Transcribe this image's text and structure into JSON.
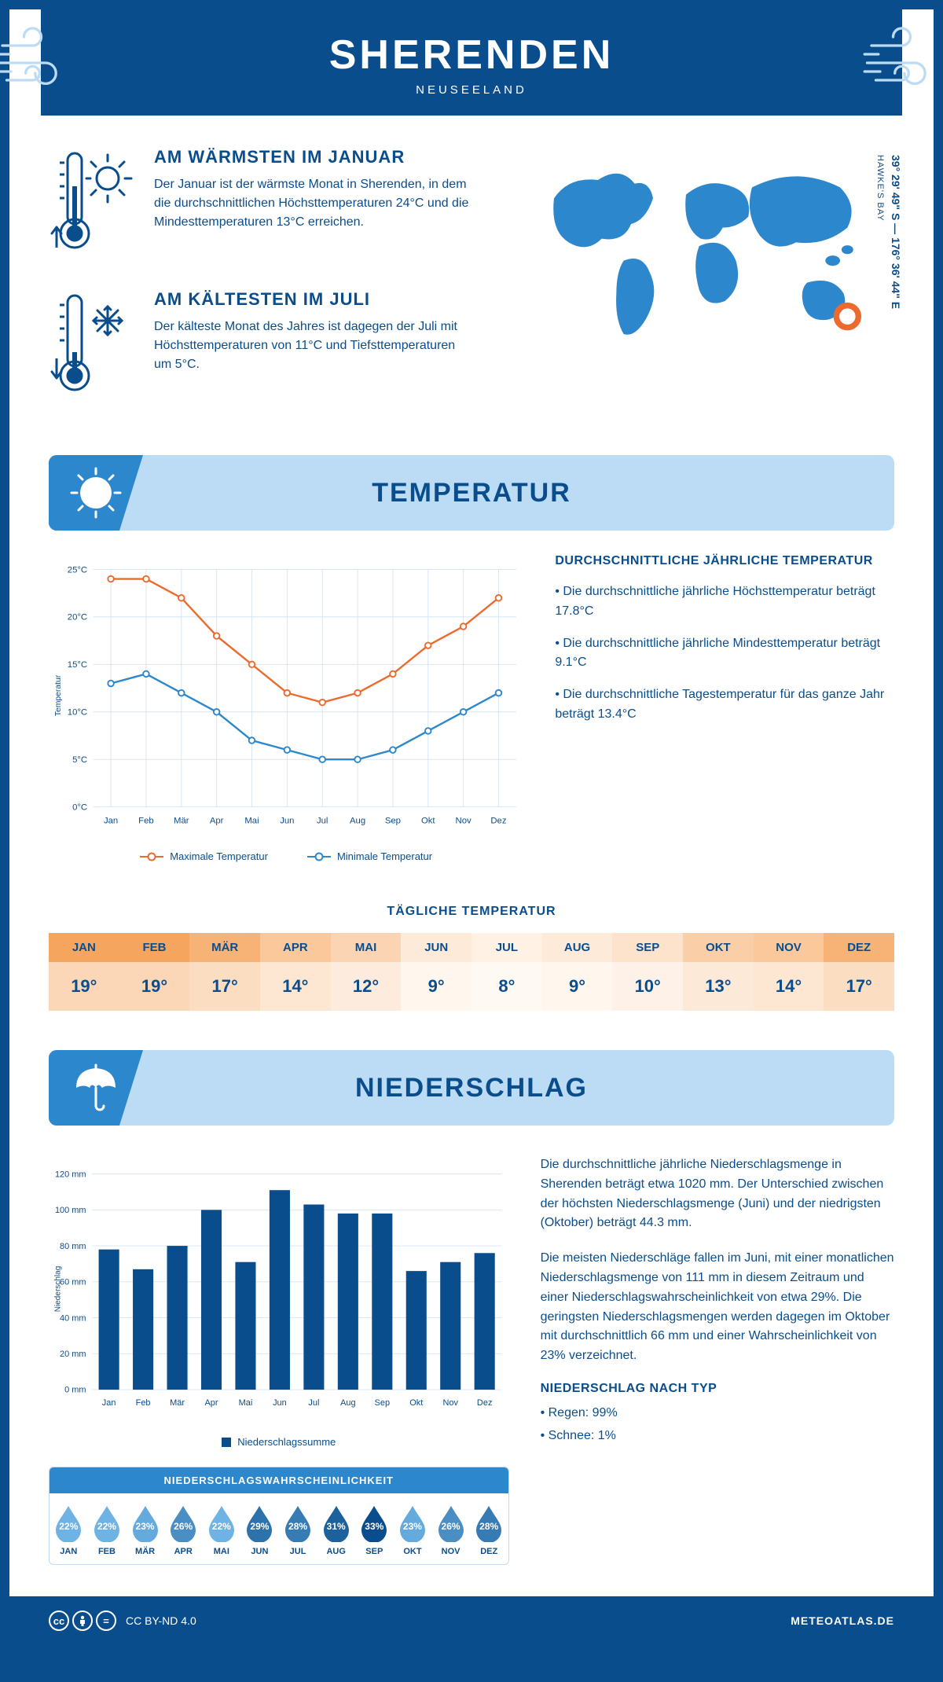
{
  "header": {
    "title": "SHERENDEN",
    "subtitle": "NEUSEELAND"
  },
  "location": {
    "coords": "39° 29' 49\" S — 176° 36' 44\" E",
    "region": "HAWKE'S BAY",
    "marker": {
      "cx_pct": 90,
      "cy_pct": 77,
      "color": "#ed6a2e"
    }
  },
  "facts": {
    "warm": {
      "title": "AM WÄRMSTEN IM JANUAR",
      "text": "Der Januar ist der wärmste Monat in Sherenden, in dem die durchschnittlichen Höchsttemperaturen 24°C und die Mindesttemperaturen 13°C erreichen."
    },
    "cold": {
      "title": "AM KÄLTESTEN IM JULI",
      "text": "Der kälteste Monat des Jahres ist dagegen der Juli mit Höchsttemperaturen von 11°C und Tiefsttemperaturen um 5°C."
    }
  },
  "temperature": {
    "section_title": "TEMPERATUR",
    "months": [
      "Jan",
      "Feb",
      "Mär",
      "Apr",
      "Mai",
      "Jun",
      "Jul",
      "Aug",
      "Sep",
      "Okt",
      "Nov",
      "Dez"
    ],
    "max": [
      24,
      24,
      22,
      18,
      15,
      12,
      11,
      12,
      14,
      17,
      19,
      22
    ],
    "min": [
      13,
      14,
      12,
      10,
      7,
      6,
      5,
      5,
      6,
      8,
      10,
      12
    ],
    "max_color": "#ed6a2e",
    "min_color": "#2d87cc",
    "grid_color": "#d8e4ef",
    "ylim": [
      0,
      25
    ],
    "ytick_step": 5,
    "y_unit": "°C",
    "y_axis_label": "Temperatur",
    "legend_max": "Maximale Temperatur",
    "legend_min": "Minimale Temperatur",
    "info_title": "DURCHSCHNITTLICHE JÄHRLICHE TEMPERATUR",
    "info_points": [
      "• Die durchschnittliche jährliche Höchsttemperatur beträgt 17.8°C",
      "• Die durchschnittliche jährliche Mindesttemperatur beträgt 9.1°C",
      "• Die durchschnittliche Tagestemperatur für das ganze Jahr beträgt 13.4°C"
    ]
  },
  "daily": {
    "title": "TÄGLICHE TEMPERATUR",
    "months": [
      "JAN",
      "FEB",
      "MÄR",
      "APR",
      "MAI",
      "JUN",
      "JUL",
      "AUG",
      "SEP",
      "OKT",
      "NOV",
      "DEZ"
    ],
    "values": [
      "19°",
      "19°",
      "17°",
      "14°",
      "12°",
      "9°",
      "8°",
      "9°",
      "10°",
      "13°",
      "14°",
      "17°"
    ],
    "raw": [
      19,
      19,
      17,
      14,
      12,
      9,
      8,
      9,
      10,
      13,
      14,
      17
    ],
    "min_raw": 8,
    "max_raw": 19,
    "color_min": "#fff1e4",
    "color_max": "#f5a55e"
  },
  "precipitation": {
    "section_title": "NIEDERSCHLAG",
    "months": [
      "Jan",
      "Feb",
      "Mär",
      "Apr",
      "Mai",
      "Jun",
      "Jul",
      "Aug",
      "Sep",
      "Okt",
      "Nov",
      "Dez"
    ],
    "values": [
      78,
      67,
      80,
      100,
      71,
      111,
      103,
      98,
      98,
      66,
      71,
      76
    ],
    "bar_color": "#0a4d8c",
    "grid_color": "#d8e4ef",
    "ylim": [
      0,
      120
    ],
    "ytick_step": 20,
    "y_unit": " mm",
    "y_axis_label": "Niederschlag",
    "legend": "Niederschlagssumme",
    "text1": "Die durchschnittliche jährliche Niederschlagsmenge in Sherenden beträgt etwa 1020 mm. Der Unterschied zwischen der höchsten Niederschlagsmenge (Juni) und der niedrigsten (Oktober) beträgt 44.3 mm.",
    "text2": "Die meisten Niederschläge fallen im Juni, mit einer monatlichen Niederschlagsmenge von 111 mm in diesem Zeitraum und einer Niederschlagswahrscheinlichkeit von etwa 29%. Die geringsten Niederschlagsmengen werden dagegen im Oktober mit durchschnittlich 66 mm und einer Wahrscheinlichkeit von 23% verzeichnet.",
    "type_title": "NIEDERSCHLAG NACH TYP",
    "type_points": [
      "• Regen: 99%",
      "• Schnee: 1%"
    ]
  },
  "probability": {
    "title": "NIEDERSCHLAGSWAHRSCHEINLICHKEIT",
    "months": [
      "JAN",
      "FEB",
      "MÄR",
      "APR",
      "MAI",
      "JUN",
      "JUL",
      "AUG",
      "SEP",
      "OKT",
      "NOV",
      "DEZ"
    ],
    "values": [
      "22%",
      "22%",
      "23%",
      "26%",
      "22%",
      "29%",
      "28%",
      "31%",
      "33%",
      "23%",
      "26%",
      "28%"
    ],
    "raw": [
      22,
      22,
      23,
      26,
      22,
      29,
      28,
      31,
      33,
      23,
      26,
      28
    ],
    "min_raw": 22,
    "max_raw": 33,
    "color_min": "#6eb3e4",
    "color_max": "#0a4d8c"
  },
  "footer": {
    "license": "CC BY-ND 4.0",
    "site": "METEOATLAS.DE"
  },
  "colors": {
    "primary": "#0a4d8c",
    "light_blue": "#bcdcf5",
    "mid_blue": "#2d87cc",
    "orange": "#ed6a2e",
    "white": "#ffffff"
  }
}
